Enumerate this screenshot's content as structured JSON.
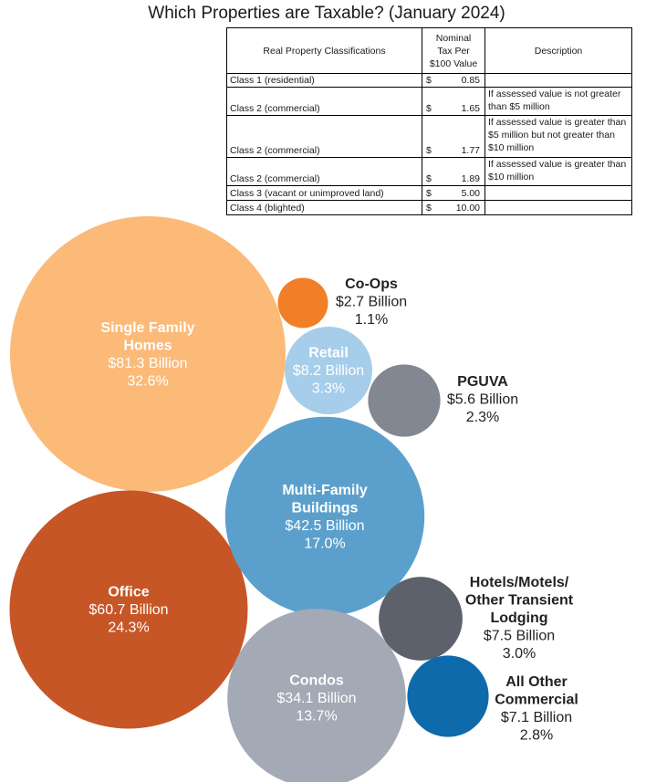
{
  "title": "Which Properties are Taxable? (January 2024)",
  "table": {
    "headers": {
      "classification": "Real Property Classifications",
      "rate_line1": "Nominal",
      "rate_line2": "Tax Per",
      "rate_line3": "$100 Value",
      "description": "Description"
    },
    "currency": "$",
    "rows": [
      {
        "classification": "Class 1 (residential)",
        "rate": "0.85",
        "description": ""
      },
      {
        "classification": "Class 2 (commercial)",
        "rate": "1.65",
        "description": "If assessed value is not greater than $5 million"
      },
      {
        "classification": "Class 2 (commercial)",
        "rate": "1.77",
        "description": "If assessed value is greater than $5 million but not greater than $10 million"
      },
      {
        "classification": "Class 2 (commercial)",
        "rate": "1.89",
        "description": "If assessed value is greater than $10 million"
      },
      {
        "classification": "Class 3 (vacant or unimproved land)",
        "rate": "5.00",
        "description": ""
      },
      {
        "classification": "Class 4 (blighted)",
        "rate": "10.00",
        "description": ""
      }
    ]
  },
  "chart_data": {
    "type": "bubble",
    "title": "Which Properties are Taxable? (January 2024)",
    "unit": "Billion",
    "bubbles": [
      {
        "name": "Single Family Homes",
        "value": 81.3,
        "percent": 32.6,
        "value_label": "$81.3 Billion",
        "percent_label": "32.6%",
        "color": "#FBBA78",
        "label_color": "#ffffff"
      },
      {
        "name": "Office",
        "value": 60.7,
        "percent": 24.3,
        "value_label": "$60.7 Billion",
        "percent_label": "24.3%",
        "color": "#C75627",
        "label_color": "#ffffff"
      },
      {
        "name": "Multi-Family Buildings",
        "value": 42.5,
        "percent": 17.0,
        "value_label": "$42.5 Billion",
        "percent_label": "17.0%",
        "color": "#5BA0CC",
        "label_color": "#ffffff"
      },
      {
        "name": "Condos",
        "value": 34.1,
        "percent": 13.7,
        "value_label": "$34.1 Billion",
        "percent_label": "13.7%",
        "color": "#A3A9B5",
        "label_color": "#ffffff"
      },
      {
        "name": "Retail",
        "value": 8.2,
        "percent": 3.3,
        "value_label": "$8.2 Billion",
        "percent_label": "3.3%",
        "color": "#A6CDEA",
        "label_color": "#ffffff"
      },
      {
        "name": "Hotels/Motels/ Other Transient Lodging",
        "value": 7.5,
        "percent": 3.0,
        "value_label": "$7.5 Billion",
        "percent_label": "3.0%",
        "color": "#5C616B",
        "label_color": "#222222"
      },
      {
        "name": "All Other Commercial",
        "value": 7.1,
        "percent": 2.8,
        "value_label": "$7.1 Billion",
        "percent_label": "2.8%",
        "color": "#0E6AAA",
        "label_color": "#222222"
      },
      {
        "name": "PGUVA",
        "value": 5.6,
        "percent": 2.3,
        "value_label": "$5.6 Billion",
        "percent_label": "2.3%",
        "color": "#828791",
        "label_color": "#222222"
      },
      {
        "name": "Co-Ops",
        "value": 2.7,
        "percent": 1.1,
        "value_label": "$2.7 Billion",
        "percent_label": "1.1%",
        "color": "#F17F27",
        "label_color": "#222222"
      }
    ]
  }
}
